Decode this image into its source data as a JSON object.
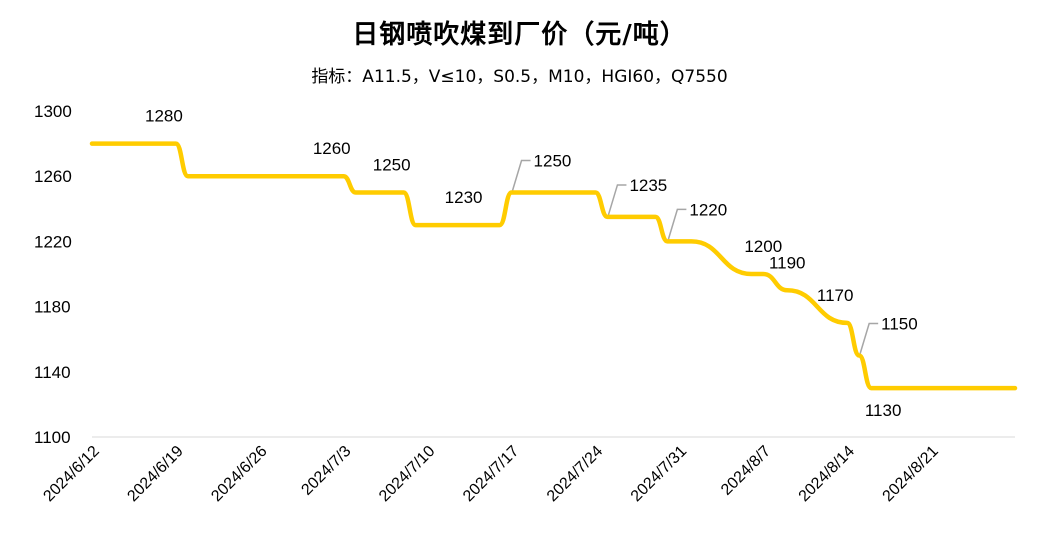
{
  "chart_data": {
    "type": "line",
    "title": "日钢喷吹煤到厂价（元/吨）",
    "subtitle": "指标：A11.5，V≤10，S0.5，M10，HGI60，Q7550",
    "ylim": [
      1100,
      1300
    ],
    "yticks": [
      "1100",
      "1140",
      "1180",
      "1220",
      "1260",
      "1300"
    ],
    "xticks": [
      "2024/6/12",
      "2024/6/19",
      "2024/6/26",
      "2024/7/3",
      "2024/7/10",
      "2024/7/17",
      "2024/7/24",
      "2024/7/31",
      "2024/8/7",
      "2024/8/14",
      "2024/8/21"
    ],
    "grid": false,
    "legend": "none",
    "line_color": "#FFCC00",
    "series": [
      {
        "x": [
          "2024/6/12",
          "2024/6/19",
          "2024/6/20",
          "2024/7/3",
          "2024/7/4",
          "2024/7/8",
          "2024/7/9",
          "2024/7/16",
          "2024/7/17",
          "2024/7/24",
          "2024/7/25",
          "2024/7/29",
          "2024/7/30",
          "2024/8/1",
          "2024/8/6",
          "2024/8/7",
          "2024/8/9",
          "2024/8/14",
          "2024/8/15",
          "2024/8/16",
          "2024/8/28"
        ],
        "values": [
          1280,
          1280,
          1260,
          1260,
          1250,
          1250,
          1230,
          1230,
          1250,
          1250,
          1235,
          1235,
          1220,
          1220,
          1200,
          1200,
          1190,
          1170,
          1150,
          1130,
          1130
        ]
      }
    ],
    "data_labels": [
      {
        "text": "1280",
        "x": "2024/6/18",
        "value": 1280,
        "leader": false
      },
      {
        "text": "1260",
        "x": "2024/7/2",
        "value": 1260,
        "leader": false
      },
      {
        "text": "1250",
        "x": "2024/7/7",
        "value": 1250,
        "leader": false
      },
      {
        "text": "1230",
        "x": "2024/7/13",
        "value": 1230,
        "leader": false
      },
      {
        "text": "1250",
        "x": "2024/7/17",
        "value": 1250,
        "leader": true
      },
      {
        "text": "1235",
        "x": "2024/7/25",
        "value": 1235,
        "leader": true
      },
      {
        "text": "1220",
        "x": "2024/7/30",
        "value": 1220,
        "leader": true
      },
      {
        "text": "1200",
        "x": "2024/8/7",
        "value": 1200,
        "leader": false
      },
      {
        "text": "1190",
        "x": "2024/8/9",
        "value": 1190,
        "leader": false
      },
      {
        "text": "1170",
        "x": "2024/8/13",
        "value": 1170,
        "leader": false
      },
      {
        "text": "1150",
        "x": "2024/8/15",
        "value": 1150,
        "leader": true
      },
      {
        "text": "1130",
        "x": "2024/8/17",
        "value": 1130,
        "leader": false
      }
    ]
  }
}
